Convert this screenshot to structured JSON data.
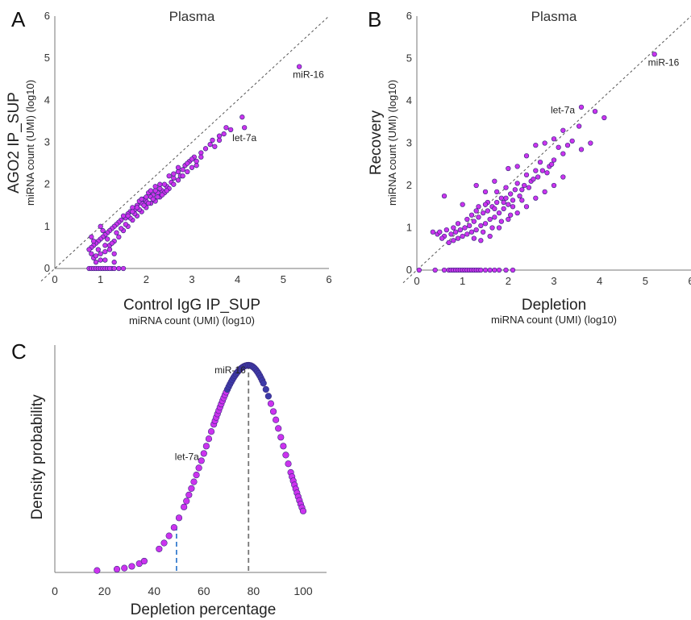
{
  "panels": {
    "a": {
      "letter": "A",
      "title": "Plasma"
    },
    "b": {
      "letter": "B",
      "title": "Plasma"
    },
    "c": {
      "letter": "C"
    }
  },
  "colors": {
    "point_fill": "#cc33ee",
    "point_stroke": "#3a2a80",
    "diag": "#555555",
    "blue_dash": "#3a7fd0",
    "gray_dash": "#777777"
  },
  "chart_data": [
    {
      "id": "A",
      "type": "scatter",
      "title": "Plasma",
      "xlabel": "Control IgG IP_SUP",
      "xlabel_sub": "miRNA count (UMI) (log10)",
      "ylabel": "AGO2 IP_SUP",
      "ylabel_sub": "miRNA count (UMI) (log10)",
      "xlim": [
        0,
        6
      ],
      "ylim": [
        0,
        6
      ],
      "xticks": [
        "0",
        "1",
        "2",
        "3",
        "4",
        "5",
        "6"
      ],
      "yticks": [
        "0",
        "1",
        "2",
        "3",
        "4",
        "5",
        "6"
      ],
      "diagonal": true,
      "annotations": [
        {
          "text": "miR-16",
          "x": 5.35,
          "y": 4.8
        },
        {
          "text": "let-7a",
          "x": 3.85,
          "y": 3.3
        }
      ],
      "points": [
        [
          5.35,
          4.8
        ],
        [
          4.1,
          3.6
        ],
        [
          3.85,
          3.3
        ],
        [
          4.15,
          3.35
        ],
        [
          3.75,
          3.35
        ],
        [
          3.6,
          3.15
        ],
        [
          3.45,
          3.05
        ],
        [
          3.5,
          2.9
        ],
        [
          3.3,
          2.85
        ],
        [
          3.2,
          2.75
        ],
        [
          3.05,
          2.65
        ],
        [
          3.1,
          2.55
        ],
        [
          2.95,
          2.55
        ],
        [
          2.85,
          2.45
        ],
        [
          2.8,
          2.35
        ],
        [
          2.7,
          2.3
        ],
        [
          2.75,
          2.2
        ],
        [
          2.6,
          2.15
        ],
        [
          2.55,
          2.05
        ],
        [
          2.5,
          2.2
        ],
        [
          2.45,
          1.95
        ],
        [
          2.4,
          2.0
        ],
        [
          2.35,
          1.85
        ],
        [
          2.3,
          1.9
        ],
        [
          2.25,
          1.8
        ],
        [
          2.2,
          1.85
        ],
        [
          2.15,
          1.75
        ],
        [
          2.1,
          1.7
        ],
        [
          2.05,
          1.8
        ],
        [
          2.0,
          1.6
        ],
        [
          1.95,
          1.65
        ],
        [
          1.9,
          1.55
        ],
        [
          1.85,
          1.6
        ],
        [
          1.8,
          1.5
        ],
        [
          1.75,
          1.4
        ],
        [
          1.7,
          1.45
        ],
        [
          1.65,
          1.35
        ],
        [
          1.6,
          1.3
        ],
        [
          1.55,
          1.2
        ],
        [
          1.5,
          1.25
        ],
        [
          1.45,
          1.15
        ],
        [
          1.4,
          1.1
        ],
        [
          1.35,
          1.05
        ],
        [
          1.3,
          1.0
        ],
        [
          1.25,
          0.95
        ],
        [
          1.2,
          0.9
        ],
        [
          1.15,
          0.85
        ],
        [
          1.1,
          0.8
        ],
        [
          1.05,
          0.75
        ],
        [
          1.0,
          0.7
        ],
        [
          0.95,
          0.65
        ],
        [
          0.9,
          0.6
        ],
        [
          0.85,
          0.55
        ],
        [
          0.8,
          0.5
        ],
        [
          0.75,
          0.45
        ],
        [
          0.8,
          0.35
        ],
        [
          0.85,
          0.25
        ],
        [
          0.9,
          0.3
        ],
        [
          1.0,
          0.2
        ],
        [
          1.1,
          0.4
        ],
        [
          1.2,
          0.55
        ],
        [
          1.3,
          0.65
        ],
        [
          1.4,
          0.75
        ],
        [
          1.5,
          0.9
        ],
        [
          1.6,
          1.0
        ],
        [
          1.7,
          1.15
        ],
        [
          1.8,
          1.25
        ],
        [
          1.9,
          1.35
        ],
        [
          2.0,
          1.45
        ],
        [
          2.1,
          1.55
        ],
        [
          2.2,
          1.6
        ],
        [
          2.3,
          1.7
        ],
        [
          2.4,
          1.8
        ],
        [
          2.5,
          1.9
        ],
        [
          2.6,
          2.0
        ],
        [
          2.7,
          2.1
        ],
        [
          2.8,
          2.2
        ],
        [
          2.9,
          2.3
        ],
        [
          3.0,
          2.4
        ],
        [
          3.1,
          2.45
        ],
        [
          1.0,
          1.0
        ],
        [
          1.05,
          0.9
        ],
        [
          1.15,
          0.7
        ],
        [
          1.25,
          0.6
        ],
        [
          1.35,
          0.85
        ],
        [
          1.45,
          0.95
        ],
        [
          1.55,
          1.05
        ],
        [
          1.65,
          1.2
        ],
        [
          1.75,
          1.3
        ],
        [
          1.85,
          1.4
        ],
        [
          1.95,
          1.5
        ],
        [
          2.05,
          1.55
        ],
        [
          2.15,
          1.65
        ],
        [
          2.25,
          1.7
        ],
        [
          2.35,
          1.75
        ],
        [
          2.45,
          1.85
        ],
        [
          1.1,
          0.55
        ],
        [
          1.2,
          0.45
        ],
        [
          1.3,
          0.35
        ],
        [
          0.95,
          0.45
        ],
        [
          0.9,
          0.15
        ],
        [
          1.0,
          0.35
        ],
        [
          1.1,
          0.2
        ],
        [
          1.3,
          0.15
        ],
        [
          1.25,
          0.0
        ],
        [
          0.75,
          0.0
        ],
        [
          0.8,
          0.0
        ],
        [
          0.85,
          0.0
        ],
        [
          0.9,
          0.0
        ],
        [
          0.95,
          0.0
        ],
        [
          1.0,
          0.0
        ],
        [
          1.05,
          0.0
        ],
        [
          1.1,
          0.0
        ],
        [
          1.15,
          0.0
        ],
        [
          1.2,
          0.0
        ],
        [
          1.3,
          0.0
        ],
        [
          1.4,
          0.0
        ],
        [
          1.5,
          0.0
        ],
        [
          0.85,
          0.65
        ],
        [
          0.8,
          0.75
        ],
        [
          1.6,
          1.25
        ],
        [
          1.7,
          1.35
        ],
        [
          1.8,
          1.45
        ],
        [
          1.9,
          1.65
        ],
        [
          2.0,
          1.7
        ],
        [
          2.1,
          1.85
        ],
        [
          2.2,
          1.95
        ],
        [
          2.3,
          2.0
        ],
        [
          2.6,
          2.25
        ],
        [
          2.7,
          2.4
        ],
        [
          2.9,
          2.5
        ],
        [
          3.0,
          2.6
        ],
        [
          3.2,
          2.65
        ],
        [
          3.4,
          2.95
        ],
        [
          3.6,
          3.05
        ],
        [
          3.7,
          3.2
        ]
      ]
    },
    {
      "id": "B",
      "type": "scatter",
      "title": "Plasma",
      "xlabel": "Depletion",
      "xlabel_sub": "miRNA count (UMI) (log10)",
      "ylabel": "Recovery",
      "ylabel_sub": "miRNA count (UMI) (log10)",
      "xlim": [
        0,
        6
      ],
      "ylim": [
        0,
        6
      ],
      "xticks": [
        "0",
        "1",
        "2",
        "3",
        "4",
        "5",
        "6"
      ],
      "yticks": [
        "0",
        "1",
        "2",
        "3",
        "4",
        "5",
        "6"
      ],
      "diagonal": true,
      "annotations": [
        {
          "text": "miR-16",
          "x": 5.2,
          "y": 5.1
        },
        {
          "text": "let-7a",
          "x": 3.6,
          "y": 3.8
        }
      ],
      "points": [
        [
          5.2,
          5.1
        ],
        [
          4.1,
          3.6
        ],
        [
          3.9,
          3.75
        ],
        [
          3.6,
          3.85
        ],
        [
          3.55,
          3.4
        ],
        [
          3.8,
          3.0
        ],
        [
          3.6,
          2.85
        ],
        [
          3.4,
          3.05
        ],
        [
          3.3,
          2.95
        ],
        [
          3.2,
          2.75
        ],
        [
          3.1,
          2.9
        ],
        [
          3.0,
          2.6
        ],
        [
          2.9,
          2.45
        ],
        [
          2.85,
          2.3
        ],
        [
          2.7,
          2.55
        ],
        [
          2.65,
          2.2
        ],
        [
          2.6,
          2.35
        ],
        [
          2.5,
          2.1
        ],
        [
          2.45,
          1.95
        ],
        [
          2.4,
          2.25
        ],
        [
          2.3,
          1.9
        ],
        [
          2.25,
          1.75
        ],
        [
          2.2,
          2.05
        ],
        [
          2.1,
          1.65
        ],
        [
          2.05,
          1.8
        ],
        [
          2.0,
          1.55
        ],
        [
          1.95,
          1.95
        ],
        [
          1.9,
          1.45
        ],
        [
          1.85,
          1.7
        ],
        [
          1.8,
          1.35
        ],
        [
          1.75,
          1.6
        ],
        [
          1.7,
          1.25
        ],
        [
          1.65,
          1.5
        ],
        [
          1.6,
          1.2
        ],
        [
          1.55,
          1.4
        ],
        [
          1.5,
          1.1
        ],
        [
          1.45,
          1.35
        ],
        [
          1.4,
          1.05
        ],
        [
          1.35,
          1.25
        ],
        [
          1.3,
          0.95
        ],
        [
          1.25,
          1.15
        ],
        [
          1.2,
          0.9
        ],
        [
          1.15,
          1.05
        ],
        [
          1.1,
          0.85
        ],
        [
          1.05,
          1.0
        ],
        [
          1.0,
          0.8
        ],
        [
          0.95,
          0.95
        ],
        [
          0.9,
          0.75
        ],
        [
          0.85,
          0.9
        ],
        [
          0.8,
          0.7
        ],
        [
          0.75,
          0.85
        ],
        [
          0.7,
          0.65
        ],
        [
          0.6,
          0.8
        ],
        [
          0.55,
          0.75
        ],
        [
          0.45,
          0.85
        ],
        [
          0.35,
          0.9
        ],
        [
          0.6,
          1.75
        ],
        [
          1.0,
          1.55
        ],
        [
          1.3,
          2.0
        ],
        [
          1.5,
          1.85
        ],
        [
          1.7,
          2.1
        ],
        [
          2.0,
          2.4
        ],
        [
          2.2,
          2.45
        ],
        [
          2.4,
          2.7
        ],
        [
          2.6,
          2.95
        ],
        [
          2.8,
          3.0
        ],
        [
          3.0,
          3.1
        ],
        [
          3.2,
          3.3
        ],
        [
          1.4,
          0.7
        ],
        [
          1.6,
          0.8
        ],
        [
          1.8,
          1.0
        ],
        [
          2.0,
          1.2
        ],
        [
          2.2,
          1.35
        ],
        [
          2.4,
          1.5
        ],
        [
          2.6,
          1.7
        ],
        [
          2.8,
          1.85
        ],
        [
          3.0,
          2.0
        ],
        [
          3.2,
          2.2
        ],
        [
          1.2,
          1.3
        ],
        [
          1.35,
          1.5
        ],
        [
          1.55,
          1.6
        ],
        [
          1.75,
          1.85
        ],
        [
          1.95,
          1.7
        ],
        [
          2.15,
          1.9
        ],
        [
          2.35,
          2.0
        ],
        [
          2.55,
          2.15
        ],
        [
          2.75,
          2.35
        ],
        [
          2.95,
          2.5
        ],
        [
          0.9,
          1.1
        ],
        [
          1.1,
          1.2
        ],
        [
          1.3,
          1.4
        ],
        [
          1.5,
          1.55
        ],
        [
          1.7,
          1.45
        ],
        [
          1.9,
          1.6
        ],
        [
          2.1,
          1.5
        ],
        [
          2.3,
          1.65
        ],
        [
          0.05,
          0.0
        ],
        [
          0.4,
          0.0
        ],
        [
          0.6,
          0.0
        ],
        [
          0.7,
          0.0
        ],
        [
          0.75,
          0.0
        ],
        [
          0.8,
          0.0
        ],
        [
          0.85,
          0.0
        ],
        [
          0.9,
          0.0
        ],
        [
          0.95,
          0.0
        ],
        [
          1.0,
          0.0
        ],
        [
          1.05,
          0.0
        ],
        [
          1.1,
          0.0
        ],
        [
          1.15,
          0.0
        ],
        [
          1.2,
          0.0
        ],
        [
          1.25,
          0.0
        ],
        [
          1.3,
          0.0
        ],
        [
          1.35,
          0.0
        ],
        [
          1.4,
          0.0
        ],
        [
          1.5,
          0.0
        ],
        [
          1.6,
          0.0
        ],
        [
          1.7,
          0.0
        ],
        [
          1.8,
          0.0
        ],
        [
          1.95,
          0.0
        ],
        [
          2.1,
          0.0
        ],
        [
          0.5,
          0.9
        ],
        [
          0.65,
          0.95
        ],
        [
          0.8,
          1.0
        ],
        [
          1.25,
          0.75
        ],
        [
          1.45,
          0.9
        ],
        [
          1.65,
          1.0
        ],
        [
          1.85,
          1.15
        ],
        [
          2.05,
          1.3
        ]
      ]
    },
    {
      "id": "C",
      "type": "line",
      "xlabel": "Depletion percentage",
      "ylabel": "Density probability",
      "xlim": [
        0,
        100
      ],
      "xticks": [
        "0",
        "20",
        "40",
        "60",
        "80",
        "100"
      ],
      "curve": {
        "peak_x": 78,
        "left_sd": 17,
        "right_sd": 14
      },
      "vlines": [
        {
          "x": 49,
          "style": "blue-dashed"
        },
        {
          "x": 78,
          "style": "gray-dashed"
        }
      ],
      "annotations": [
        {
          "text": "miR-16",
          "x": 76
        },
        {
          "text": "let-7a",
          "x": 60
        }
      ],
      "point_x": [
        17,
        25,
        28,
        31,
        34,
        36,
        42,
        44,
        46,
        48,
        50,
        52,
        53,
        54,
        55,
        56,
        57,
        58,
        59,
        60,
        61,
        62,
        63,
        64,
        64.5,
        65,
        65.5,
        66,
        66.5,
        67,
        67.5,
        68,
        68.5,
        69,
        69.5,
        70,
        70.5,
        71,
        71.5,
        72,
        72.5,
        73,
        73.5,
        74,
        74.5,
        75,
        75.5,
        76,
        76.5,
        77,
        77.5,
        78,
        78.5,
        79,
        79.5,
        80,
        80.5,
        81,
        81.5,
        82,
        82.5,
        83,
        83.5,
        84,
        85,
        86,
        87,
        88,
        89,
        90,
        91,
        92,
        93,
        94,
        95,
        95.5,
        96,
        96.5,
        97,
        97.5,
        98,
        98.5,
        99,
        99.5,
        100
      ]
    }
  ]
}
